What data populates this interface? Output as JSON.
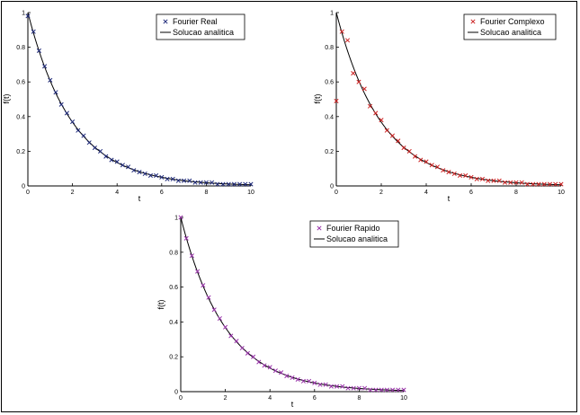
{
  "chart_data": [
    {
      "type": "line",
      "xlabel": "t",
      "ylabel": "f(t)",
      "xlim": [
        0,
        10
      ],
      "ylim": [
        0,
        1
      ],
      "xticks": [
        "0",
        "2",
        "4",
        "6",
        "8",
        "10"
      ],
      "yticks": [
        "0",
        "0.2",
        "0.4",
        "0.6",
        "0.8",
        "1"
      ],
      "legend_position": "top-right",
      "series": [
        {
          "name": "Fourier Real",
          "marker": "x",
          "color": "#1f2a7a",
          "x": [
            0,
            0.25,
            0.5,
            0.75,
            1,
            1.25,
            1.5,
            1.75,
            2,
            2.25,
            2.5,
            2.75,
            3,
            3.25,
            3.5,
            3.75,
            4,
            4.25,
            4.5,
            4.75,
            5,
            5.25,
            5.5,
            5.75,
            6,
            6.25,
            6.5,
            6.75,
            7,
            7.25,
            7.5,
            7.75,
            8,
            8.25,
            8.5,
            8.75,
            9,
            9.25,
            9.5,
            9.75,
            10
          ],
          "y": [
            0.98,
            0.89,
            0.78,
            0.69,
            0.61,
            0.54,
            0.47,
            0.42,
            0.37,
            0.32,
            0.29,
            0.25,
            0.22,
            0.2,
            0.17,
            0.15,
            0.14,
            0.12,
            0.11,
            0.09,
            0.08,
            0.07,
            0.06,
            0.06,
            0.05,
            0.04,
            0.04,
            0.03,
            0.03,
            0.03,
            0.02,
            0.02,
            0.02,
            0.02,
            0.01,
            0.01,
            0.01,
            0.01,
            0.01,
            0.01,
            0.01
          ]
        },
        {
          "name": "Solucao analitica",
          "color": "#000000",
          "function": "exp(-t/2)"
        }
      ]
    },
    {
      "type": "line",
      "xlabel": "t",
      "ylabel": "f(t)",
      "xlim": [
        0,
        10
      ],
      "ylim": [
        0,
        1
      ],
      "xticks": [
        "0",
        "2",
        "4",
        "6",
        "8",
        "10"
      ],
      "yticks": [
        "0",
        "0.2",
        "0.4",
        "0.6",
        "0.8",
        "1"
      ],
      "legend_position": "top-right",
      "series": [
        {
          "name": "Fourier Complexo",
          "marker": "x",
          "color": "#cc2222",
          "x": [
            0,
            0.25,
            0.5,
            0.75,
            1,
            1.25,
            1.5,
            1.75,
            2,
            2.25,
            2.5,
            2.75,
            3,
            3.25,
            3.5,
            3.75,
            4,
            4.25,
            4.5,
            4.75,
            5,
            5.25,
            5.5,
            5.75,
            6,
            6.25,
            6.5,
            6.75,
            7,
            7.25,
            7.5,
            7.75,
            8,
            8.25,
            8.5,
            8.75,
            9,
            9.25,
            9.5,
            9.75,
            10
          ],
          "y": [
            0.49,
            0.89,
            0.84,
            0.65,
            0.6,
            0.56,
            0.46,
            0.42,
            0.38,
            0.32,
            0.29,
            0.26,
            0.22,
            0.2,
            0.17,
            0.15,
            0.14,
            0.12,
            0.11,
            0.09,
            0.08,
            0.07,
            0.06,
            0.06,
            0.05,
            0.04,
            0.04,
            0.03,
            0.03,
            0.03,
            0.02,
            0.02,
            0.02,
            0.02,
            0.01,
            0.01,
            0.01,
            0.01,
            0.01,
            0.01,
            0.01
          ]
        },
        {
          "name": "Solucao analitica",
          "color": "#000000",
          "function": "exp(-t/2)"
        }
      ]
    },
    {
      "type": "line",
      "xlabel": "t",
      "ylabel": "f(t)",
      "xlim": [
        0,
        10
      ],
      "ylim": [
        0,
        1
      ],
      "xticks": [
        "0",
        "2",
        "4",
        "6",
        "8",
        "10"
      ],
      "yticks": [
        "0",
        "0.2",
        "0.4",
        "0.6",
        "0.8",
        "1"
      ],
      "legend_position": "top-right",
      "series": [
        {
          "name": "Fourier Rapido",
          "marker": "x",
          "color": "#9933aa",
          "x": [
            0,
            0.25,
            0.5,
            0.75,
            1,
            1.25,
            1.5,
            1.75,
            2,
            2.25,
            2.5,
            2.75,
            3,
            3.25,
            3.5,
            3.75,
            4,
            4.25,
            4.5,
            4.75,
            5,
            5.25,
            5.5,
            5.75,
            6,
            6.25,
            6.5,
            6.75,
            7,
            7.25,
            7.5,
            7.75,
            8,
            8.25,
            8.5,
            8.75,
            9,
            9.25,
            9.5,
            9.75,
            10
          ],
          "y": [
            1.0,
            0.88,
            0.78,
            0.69,
            0.61,
            0.54,
            0.47,
            0.42,
            0.37,
            0.32,
            0.29,
            0.25,
            0.22,
            0.2,
            0.17,
            0.15,
            0.14,
            0.12,
            0.11,
            0.09,
            0.08,
            0.07,
            0.06,
            0.06,
            0.05,
            0.04,
            0.04,
            0.03,
            0.03,
            0.03,
            0.02,
            0.02,
            0.02,
            0.02,
            0.01,
            0.01,
            0.01,
            0.01,
            0.01,
            0.01,
            0.01
          ]
        },
        {
          "name": "Solucao analitica",
          "color": "#000000",
          "function": "exp(-t/2)"
        }
      ]
    }
  ]
}
